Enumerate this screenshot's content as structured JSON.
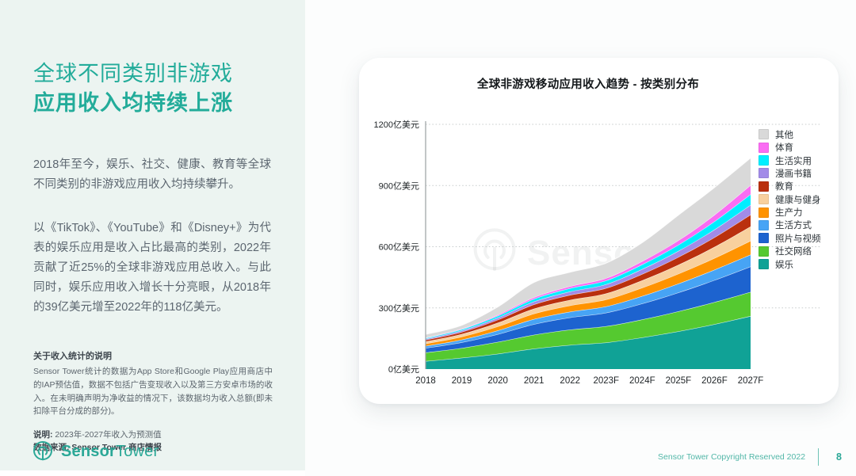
{
  "accent_color": "#23ac9a",
  "sidebar": {
    "background_color": "#ecf4f1",
    "title_line1": "全球不同类别非游戏",
    "title_line2": "应用收入均持续上涨",
    "para1": "2018年至今，娱乐、社交、健康、教育等全球不同类别的非游戏应用收入均持续攀升。",
    "para2": "以《TikTok》、《YouTube》和《Disney+》为代表的娱乐应用是收入占比最高的类别，2022年贡献了近25%的全球非游戏应用总收入。与此同时，娱乐应用收入增长十分亮眼，从2018年的39亿美元增至2022年的118亿美元。",
    "note_title": "关于收入统计的说明",
    "note_body": "Sensor Tower统计的数据为App Store和Google Play应用商店中的IAP预估值，数据不包括广告变现收入以及第三方安卓市场的收入。在未明确声明为净收益的情况下，该数据均为收入总额(即未扣除平台分成的部分)。",
    "note2_label": "说明:",
    "note2_text": " 2023年-2027年收入为预测值",
    "source_label": "数据来源: Sensor Tower 商店情报",
    "logo_bold": "Sensor",
    "logo_regular": "Tower"
  },
  "card": {
    "watermark_text": "Sensor"
  },
  "footer": {
    "copyright": "Sensor Tower Copyright Reserved 2022",
    "page": "8"
  },
  "chart_data": {
    "type": "area",
    "stacked": true,
    "title": "全球非游戏移动应用收入趋势 - 按类别分布",
    "unit": "亿美元",
    "categories": [
      "2018",
      "2019",
      "2020",
      "2021",
      "2022",
      "2023F",
      "2024F",
      "2025F",
      "2026F",
      "2027F"
    ],
    "ylim": [
      0,
      1200
    ],
    "y_ticks": [
      0,
      300,
      600,
      900,
      1200
    ],
    "y_tick_labels": [
      "0亿美元",
      "300亿美元",
      "600亿美元",
      "900亿美元",
      "1200亿美元"
    ],
    "grid": "dotted-horizontal",
    "legend_position": "right",
    "legend_order": "top-of-stack-first",
    "series_note": "series listed bottom of stack to top; values in 亿美元, estimated from gridlines",
    "series": [
      {
        "name": "娱乐",
        "color": "#10a296",
        "values": [
          39,
          55,
          75,
          100,
          118,
          130,
          155,
          185,
          220,
          260
        ]
      },
      {
        "name": "社交网络",
        "color": "#55c930",
        "values": [
          42,
          48,
          58,
          68,
          75,
          80,
          88,
          98,
          108,
          118
        ]
      },
      {
        "name": "照片与视频",
        "color": "#1d63cf",
        "values": [
          22,
          28,
          38,
          52,
          60,
          66,
          78,
          92,
          108,
          125
        ]
      },
      {
        "name": "生活方式",
        "color": "#47a4f5",
        "values": [
          10,
          13,
          18,
          25,
          28,
          31,
          37,
          44,
          51,
          58
        ]
      },
      {
        "name": "生产力",
        "color": "#ff9300",
        "values": [
          12,
          15,
          20,
          27,
          31,
          34,
          41,
          48,
          57,
          68
        ]
      },
      {
        "name": "健康与健身",
        "color": "#f8d09e",
        "values": [
          10,
          13,
          18,
          24,
          27,
          30,
          36,
          44,
          55,
          70
        ]
      },
      {
        "name": "教育",
        "color": "#ba300e",
        "values": [
          8,
          10,
          15,
          21,
          24,
          26,
          31,
          38,
          47,
          58
        ]
      },
      {
        "name": "漫画书籍",
        "color": "#a28be8",
        "values": [
          5,
          7,
          10,
          14,
          17,
          19,
          24,
          30,
          38,
          48
        ]
      },
      {
        "name": "生活实用",
        "color": "#00eeff",
        "values": [
          4,
          6,
          9,
          13,
          16,
          18,
          23,
          30,
          40,
          52
        ]
      },
      {
        "name": "体育",
        "color": "#fa6cf3",
        "values": [
          2,
          3,
          5,
          8,
          10,
          12,
          16,
          22,
          32,
          45
        ]
      },
      {
        "name": "其他",
        "color": "#d9d9d9",
        "values": [
          16,
          17,
          39,
          73,
          69,
          74,
          91,
          124,
          134,
          133
        ]
      }
    ],
    "totals": [
      170,
      215,
      305,
      425,
      475,
      520,
      620,
      755,
      890,
      1035
    ]
  }
}
